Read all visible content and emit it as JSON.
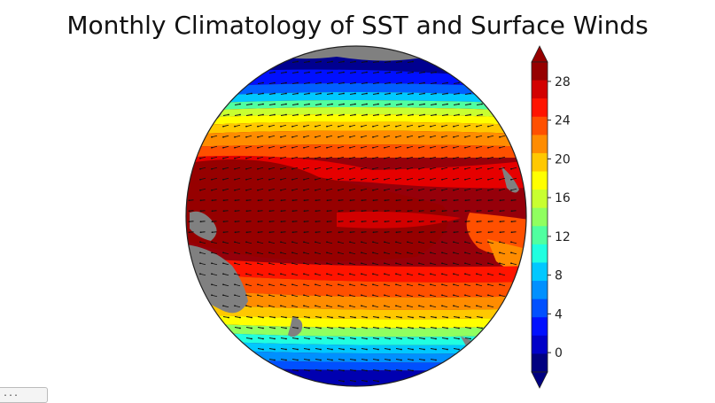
{
  "title": "Monthly Climatology of SST and Surface Winds",
  "colorbar": {
    "ticks": [
      "0",
      "4",
      "8",
      "12",
      "16",
      "20",
      "24",
      "28"
    ],
    "colors": [
      "#000080",
      "#0000c8",
      "#0010ff",
      "#0050ff",
      "#0090ff",
      "#00c8ff",
      "#20ffe0",
      "#50ffa0",
      "#90ff60",
      "#c8ff30",
      "#ffff00",
      "#ffc800",
      "#ff8c00",
      "#ff5000",
      "#ff1400",
      "#d20000",
      "#960000"
    ]
  },
  "map_colors": {
    "land": "#808080",
    "outline": "#222222",
    "vector": "#111111"
  },
  "chart_data": {
    "type": "heatmap",
    "title": "Monthly Climatology of SST and Surface Winds",
    "colorbar_range": [
      -2,
      30
    ],
    "colorbar_ticks": [
      0,
      4,
      8,
      12,
      16,
      20,
      24,
      28
    ],
    "colorbar_extend": "both"
  },
  "corner_button": {
    "label": "..."
  }
}
